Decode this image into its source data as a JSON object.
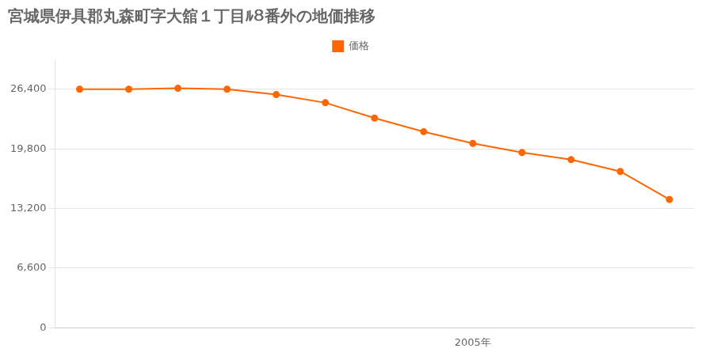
{
  "chart_data": {
    "type": "line",
    "title": "宮城県伊具郡丸森町字大舘１丁目ﾙ８番外の地価推移",
    "x": [
      1997,
      1998,
      1999,
      2000,
      2001,
      2002,
      2003,
      2004,
      2005,
      2006,
      2007,
      2008,
      2009
    ],
    "series": [
      {
        "name": "価格",
        "color": "#FF6600",
        "marker": "circle",
        "values": [
          26400,
          26400,
          26500,
          26400,
          25800,
          24900,
          23200,
          21700,
          20400,
          19400,
          18600,
          17300,
          14200
        ]
      }
    ],
    "xlim": [
      1996.5,
      2009.5
    ],
    "xticks": [
      {
        "value": 2005,
        "label": "2005年"
      }
    ],
    "ylim": [
      0,
      29700
    ],
    "yticks": [
      0,
      {
        "value": 6600,
        "label": "6,600"
      },
      {
        "value": 13200,
        "label": "13,200"
      },
      {
        "value": 19800,
        "label": "19,800"
      },
      {
        "value": 26400,
        "label": "26,400"
      }
    ],
    "grid": "y",
    "legend": "top"
  }
}
